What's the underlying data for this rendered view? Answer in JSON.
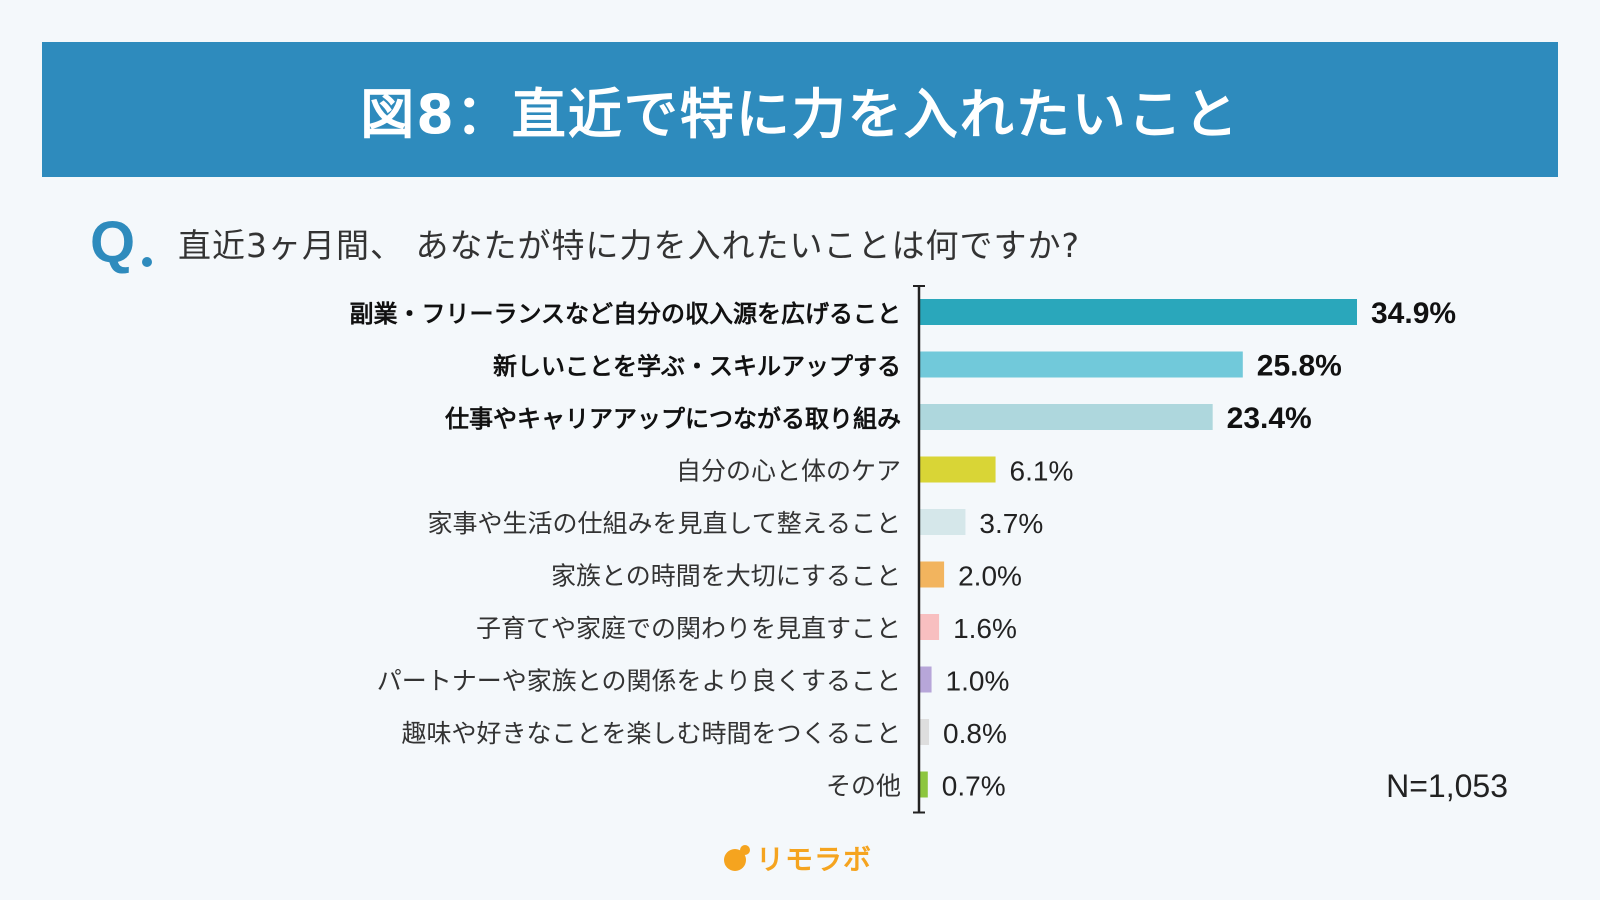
{
  "header": {
    "title": "図8：直近で特に力を入れたいこと"
  },
  "question": {
    "mark": "Q",
    "text": "直近3ヶ月間、 あなたが特に力を入れたいことは何ですか?"
  },
  "sample_size": "N=1,053",
  "logo": {
    "text": "リモラボ"
  },
  "chart_data": {
    "type": "bar",
    "orientation": "horizontal",
    "unit": "%",
    "xlim": [
      0,
      40
    ],
    "grid": false,
    "categories": [
      "副業・フリーランスなど自分の収入源を広げること",
      "新しいことを学ぶ・スキルアップする",
      "仕事やキャリアアップにつながる取り組み",
      "自分の心と体のケア",
      "家事や生活の仕組みを見直して整えること",
      "家族との時間を大切にすること",
      "子育てや家庭での関わりを見直すこと",
      "パートナーや家族との関係をより良くすること",
      "趣味や好きなことを楽しむ時間をつくること",
      "その他"
    ],
    "values": [
      34.9,
      25.8,
      23.4,
      6.1,
      3.7,
      2.0,
      1.6,
      1.0,
      0.8,
      0.7
    ],
    "value_labels": [
      "34.9%",
      "25.8%",
      "23.4%",
      "6.1%",
      "3.7%",
      "2.0%",
      "1.6%",
      "1.0%",
      "0.8%",
      "0.7%"
    ],
    "highlighted": [
      true,
      true,
      true,
      false,
      false,
      false,
      false,
      false,
      false,
      false
    ],
    "colors": [
      "#2aa7bb",
      "#71c9da",
      "#aed7dd",
      "#d9d536",
      "#d5e7ea",
      "#f2b45e",
      "#f8bfc0",
      "#b7a6d9",
      "#dedede",
      "#8dc63f"
    ]
  }
}
